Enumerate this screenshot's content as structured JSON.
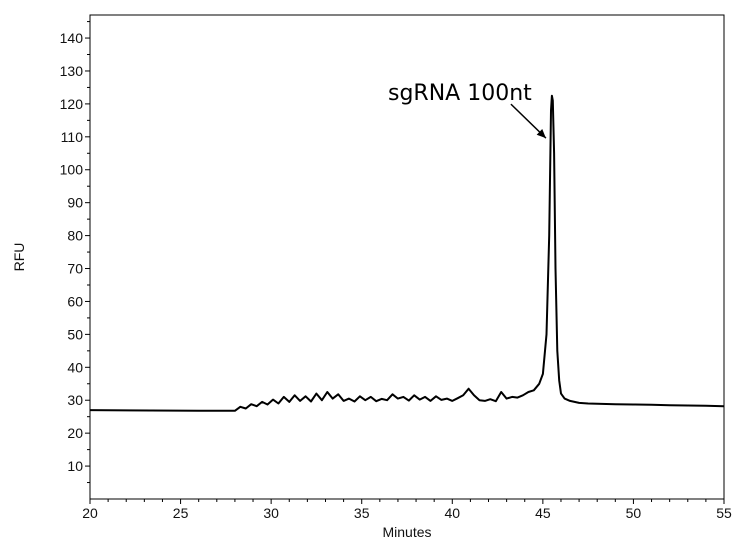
{
  "chart_data": {
    "type": "line",
    "title": "",
    "xlabel": "Minutes",
    "ylabel": "RFU",
    "xlim": [
      20,
      55
    ],
    "ylim": [
      0,
      147
    ],
    "xticks": [
      20,
      25,
      30,
      35,
      40,
      45,
      50,
      55
    ],
    "yticks": [
      10,
      20,
      30,
      40,
      50,
      60,
      70,
      80,
      90,
      100,
      110,
      120,
      130,
      140
    ],
    "grid": false,
    "legend": "none",
    "line_color": "#000000",
    "annotation": {
      "text": "sgRNA 100nt",
      "target_x": 45.5,
      "target_y": 109
    },
    "series": [
      {
        "x": [
          20,
          26,
          28.0,
          28.3,
          28.6,
          28.9,
          29.2,
          29.5,
          29.8,
          30.1,
          30.4,
          30.7,
          31.0,
          31.3,
          31.6,
          31.9,
          32.2,
          32.5,
          32.8,
          33.1,
          33.4,
          33.7,
          34.0,
          34.3,
          34.6,
          34.9,
          35.2,
          35.5,
          35.8,
          36.1,
          36.4,
          36.7,
          37.0,
          37.3,
          37.6,
          37.9,
          38.2,
          38.5,
          38.8,
          39.1,
          39.4,
          39.7,
          40.0,
          40.3,
          40.6,
          40.9,
          41.2,
          41.5,
          41.8,
          42.1,
          42.4,
          42.7,
          43.0,
          43.3,
          43.6,
          43.9,
          44.2,
          44.5,
          44.8,
          45.0,
          45.2,
          45.35,
          45.45,
          45.5,
          45.55,
          45.62,
          45.7,
          45.8,
          45.9,
          46.0,
          46.2,
          46.5,
          47.0,
          47.5,
          48.0,
          49.0,
          50.0,
          51.0,
          52.0,
          53.0,
          54.0,
          55.0
        ],
        "y": [
          27,
          26.8,
          26.8,
          28.0,
          27.5,
          28.8,
          28.2,
          29.5,
          28.7,
          30.2,
          29.0,
          31.0,
          29.5,
          31.5,
          29.8,
          31.2,
          29.6,
          32.0,
          30.0,
          32.5,
          30.5,
          31.8,
          29.8,
          30.5,
          29.6,
          31.2,
          30.0,
          31.0,
          29.7,
          30.4,
          30.0,
          31.8,
          30.5,
          31.0,
          29.9,
          31.5,
          30.2,
          31.0,
          29.8,
          31.2,
          30.1,
          30.5,
          29.8,
          30.6,
          31.5,
          33.5,
          31.5,
          30.0,
          29.8,
          30.3,
          29.7,
          32.5,
          30.5,
          31.0,
          30.8,
          31.5,
          32.5,
          33.0,
          35.0,
          38.0,
          50.0,
          80.0,
          118.0,
          122.5,
          121.0,
          105.0,
          70.0,
          45.0,
          36.0,
          32.0,
          30.5,
          29.8,
          29.2,
          29.0,
          28.9,
          28.8,
          28.7,
          28.6,
          28.5,
          28.4,
          28.3,
          28.2
        ]
      }
    ]
  }
}
